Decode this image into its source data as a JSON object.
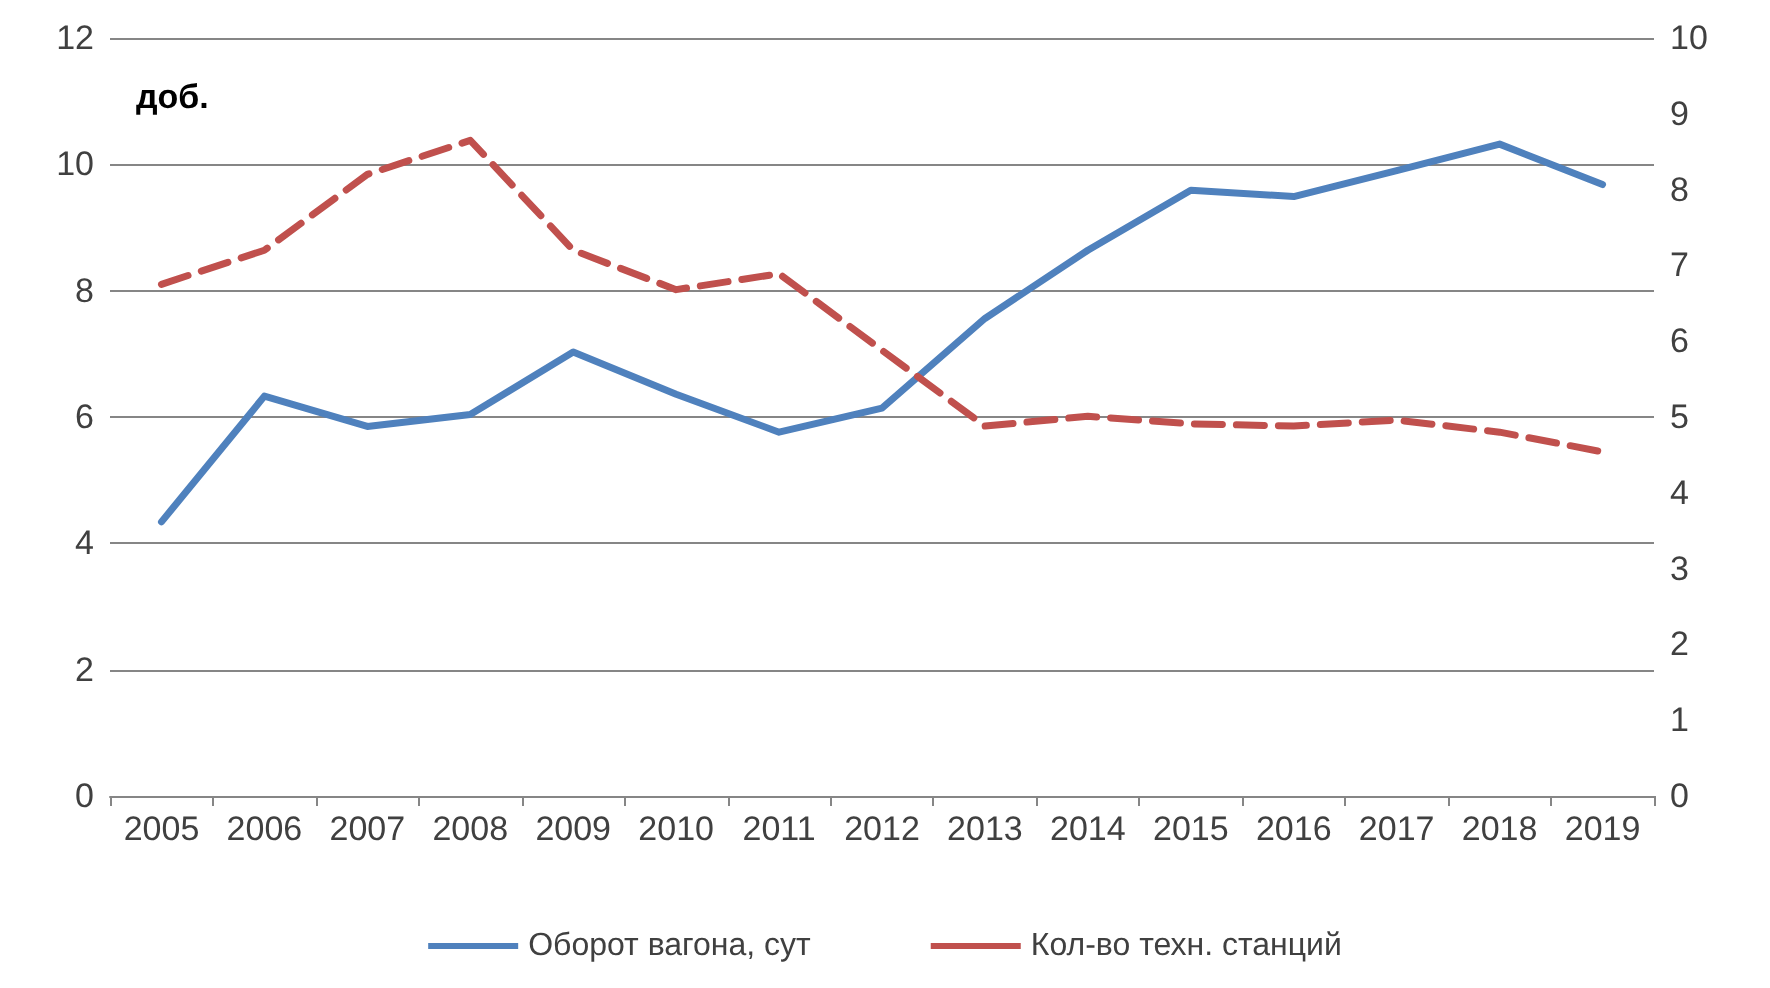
{
  "chart_data": {
    "type": "line",
    "categories": [
      "2005",
      "2006",
      "2007",
      "2008",
      "2009",
      "2010",
      "2011",
      "2012",
      "2013",
      "2014",
      "2015",
      "2016",
      "2017",
      "2018",
      "2019"
    ],
    "series": [
      {
        "name": "Оборот вагона, сут",
        "color": "#4f81bd",
        "line_style": "solid",
        "values": [
          4.34,
          6.33,
          5.85,
          6.04,
          7.03,
          6.36,
          5.76,
          6.14,
          7.56,
          8.64,
          9.59,
          9.49,
          9.9,
          10.32,
          9.68
        ]
      },
      {
        "name": "Кол-во техн. станций",
        "color": "#c0504d",
        "line_style": "dashed",
        "axis": "y2",
        "values": [
          6.75,
          7.2,
          8.2,
          8.65,
          7.2,
          6.68,
          6.89,
          5.88,
          4.88,
          5.01,
          4.91,
          4.88,
          4.96,
          4.8,
          4.54
        ]
      }
    ],
    "ylim": [
      0,
      12
    ],
    "yticks": [
      0,
      2,
      4,
      6,
      8,
      10,
      12
    ],
    "y2lim": [
      0,
      10
    ],
    "y2ticks": [
      0,
      1,
      2,
      3,
      4,
      5,
      6,
      7,
      8,
      9,
      10
    ],
    "annotations": [
      "доб."
    ],
    "grid": "y",
    "legend": "bottom",
    "marker": "none"
  }
}
